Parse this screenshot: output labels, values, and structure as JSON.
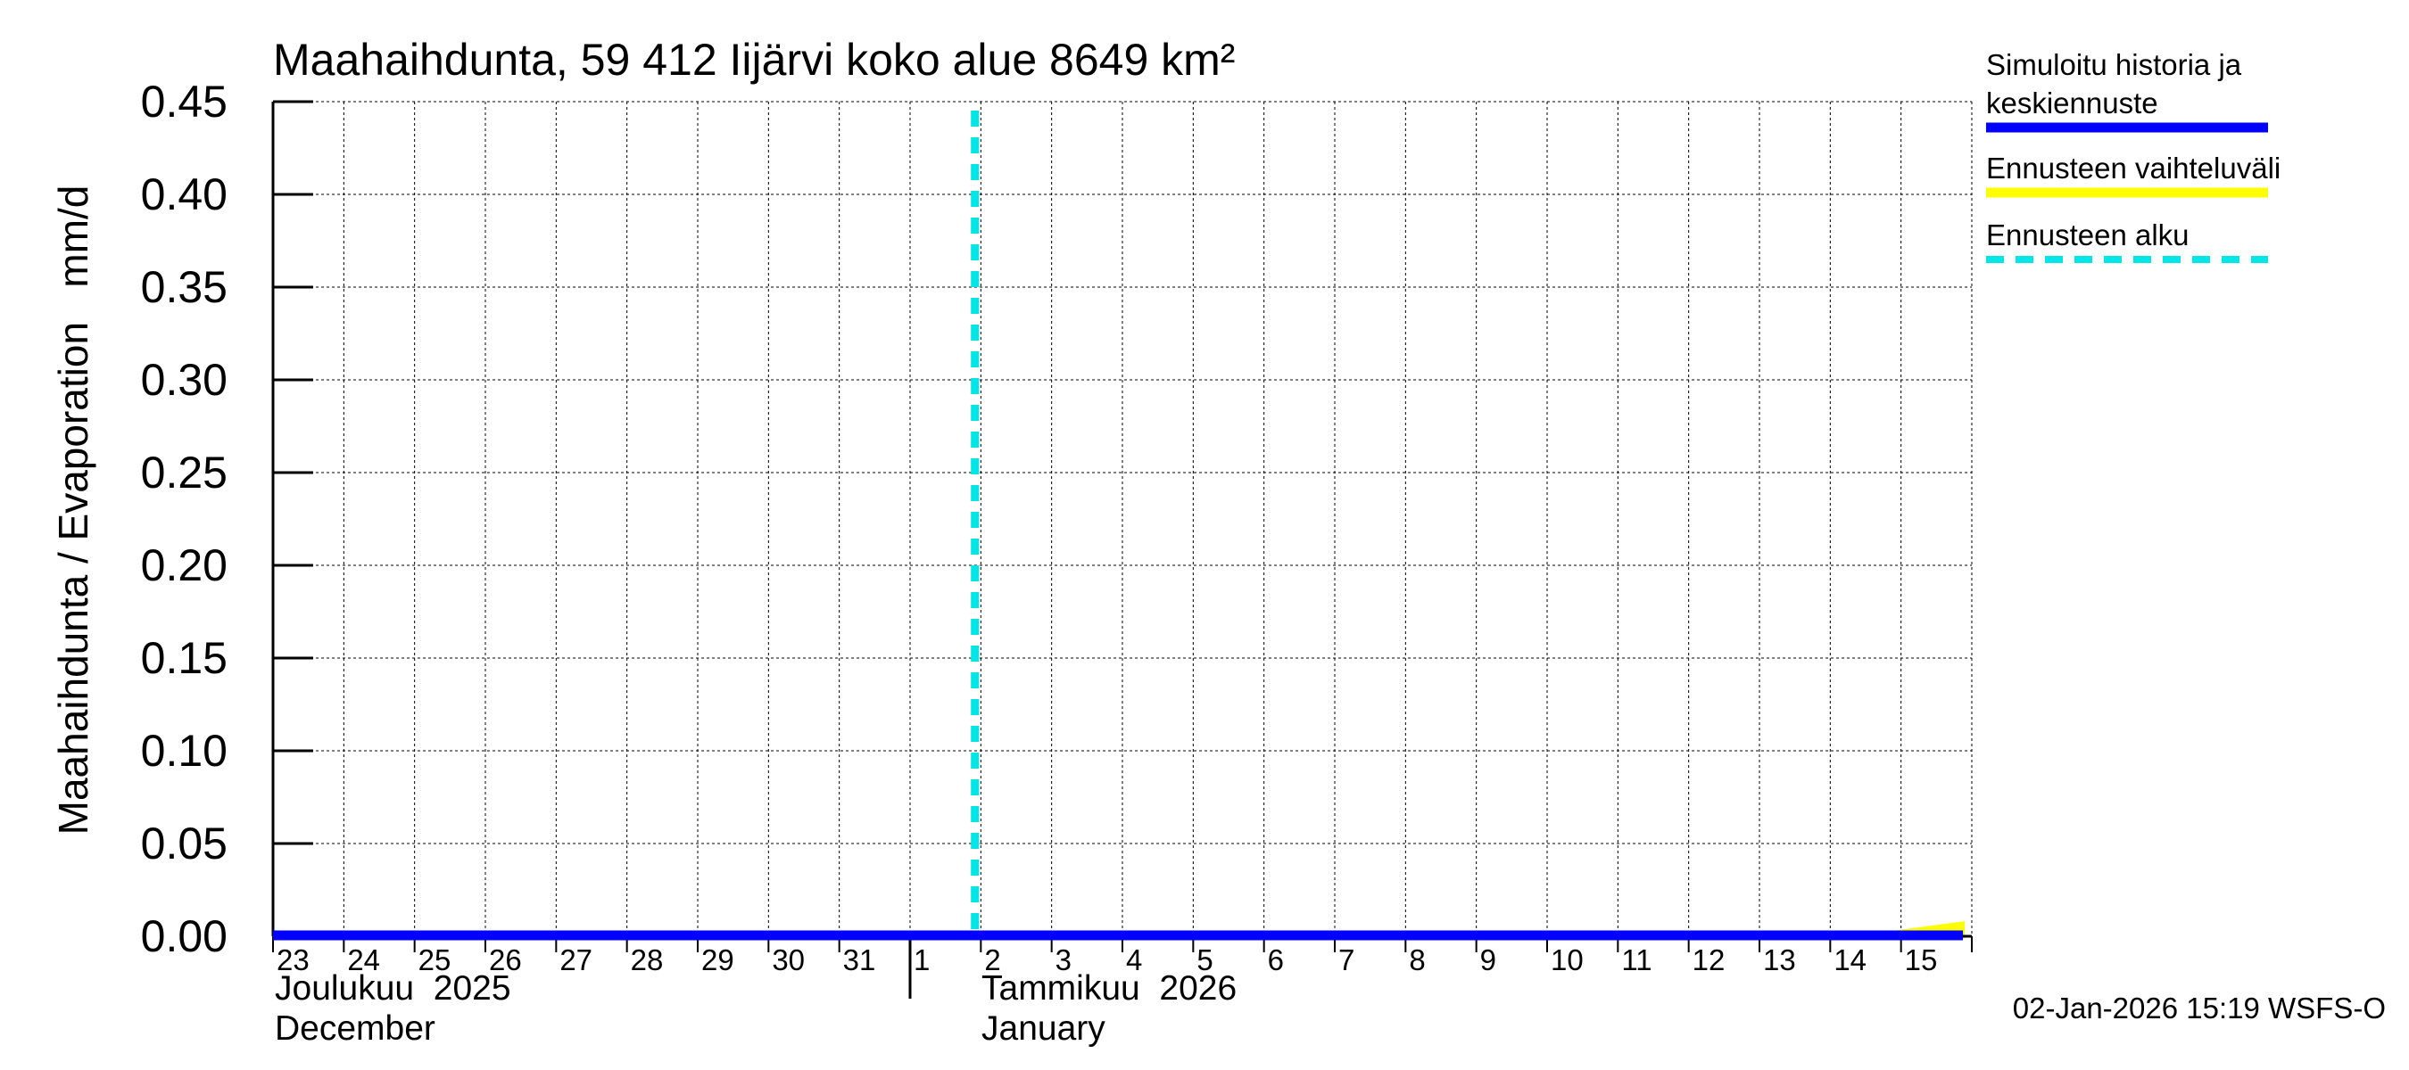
{
  "chart_data": {
    "type": "line",
    "title": "Maahaihdunta, 59 412 Iijärvi koko alue 8649 km²",
    "ylabel": "Maahaihdunta / Evaporation   mm/d",
    "ylim": [
      0,
      0.45
    ],
    "yticks": [
      "0.00",
      "0.05",
      "0.10",
      "0.15",
      "0.20",
      "0.25",
      "0.30",
      "0.35",
      "0.40",
      "0.45"
    ],
    "x_day_labels": [
      "23",
      "24",
      "25",
      "26",
      "27",
      "28",
      "29",
      "30",
      "31",
      "1",
      "2",
      "3",
      "4",
      "5",
      "6",
      "7",
      "8",
      "9",
      "10",
      "11",
      "12",
      "13",
      "14",
      "15"
    ],
    "month_labels": [
      {
        "fi": "Joulukuu  2025",
        "en": "December"
      },
      {
        "fi": "Tammikuu  2026",
        "en": "January"
      }
    ],
    "grid": true,
    "forecast_start_day": "2026-01-01T22:00",
    "series": [
      {
        "name": "Simuloitu historia ja keskiennuste",
        "color": "#0000ff",
        "x": [
          "2025-12-23",
          "2026-01-15T21:00"
        ],
        "values": [
          0.0,
          0.0
        ]
      },
      {
        "name": "Ennusteen vaihteluväli",
        "color": "#ffff00",
        "x": [
          "2026-01-14T12:00",
          "2026-01-15T21:00"
        ],
        "upper": [
          0.0,
          0.007
        ],
        "lower": [
          0.0,
          0.0
        ]
      },
      {
        "name": "Ennusteen alku",
        "color": "#00e5e5",
        "style": "dashed"
      }
    ],
    "legend_position": "right",
    "footer": "02-Jan-2026 15:19 WSFS-O"
  }
}
